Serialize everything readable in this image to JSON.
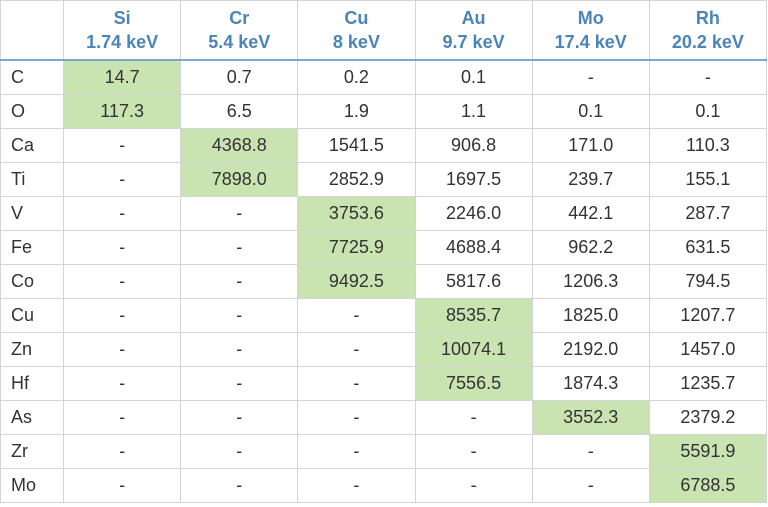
{
  "table": {
    "corner": "",
    "columns": [
      {
        "element": "Si",
        "energy": "1.74 keV"
      },
      {
        "element": "Cr",
        "energy": "5.4 keV"
      },
      {
        "element": "Cu",
        "energy": "8 keV"
      },
      {
        "element": "Au",
        "energy": "9.7 keV"
      },
      {
        "element": "Mo",
        "energy": "17.4 keV"
      },
      {
        "element": "Rh",
        "energy": "20.2 keV"
      }
    ],
    "rows": [
      {
        "label": "C",
        "values": [
          "14.7",
          "0.7",
          "0.2",
          "0.1",
          "-",
          "-"
        ],
        "highlight": 0
      },
      {
        "label": "O",
        "values": [
          "117.3",
          "6.5",
          "1.9",
          "1.1",
          "0.1",
          "0.1"
        ],
        "highlight": 0
      },
      {
        "label": "Ca",
        "values": [
          "-",
          "4368.8",
          "1541.5",
          "906.8",
          "171.0",
          "110.3"
        ],
        "highlight": 1
      },
      {
        "label": "Ti",
        "values": [
          "-",
          "7898.0",
          "2852.9",
          "1697.5",
          "239.7",
          "155.1"
        ],
        "highlight": 1
      },
      {
        "label": "V",
        "values": [
          "-",
          "-",
          "3753.6",
          "2246.0",
          "442.1",
          "287.7"
        ],
        "highlight": 2
      },
      {
        "label": "Fe",
        "values": [
          "-",
          "-",
          "7725.9",
          "4688.4",
          "962.2",
          "631.5"
        ],
        "highlight": 2
      },
      {
        "label": "Co",
        "values": [
          "-",
          "-",
          "9492.5",
          "5817.6",
          "1206.3",
          "794.5"
        ],
        "highlight": 2
      },
      {
        "label": "Cu",
        "values": [
          "-",
          "-",
          "-",
          "8535.7",
          "1825.0",
          "1207.7"
        ],
        "highlight": 3
      },
      {
        "label": "Zn",
        "values": [
          "-",
          "-",
          "-",
          "10074.1",
          "2192.0",
          "1457.0"
        ],
        "highlight": 3
      },
      {
        "label": "Hf",
        "values": [
          "-",
          "-",
          "-",
          "7556.5",
          "1874.3",
          "1235.7"
        ],
        "highlight": 3
      },
      {
        "label": "As",
        "values": [
          "-",
          "-",
          "-",
          "-",
          "3552.3",
          "2379.2"
        ],
        "highlight": 4
      },
      {
        "label": "Zr",
        "values": [
          "-",
          "-",
          "-",
          "-",
          "-",
          "5591.9"
        ],
        "highlight": 5
      },
      {
        "label": "Mo",
        "values": [
          "-",
          "-",
          "-",
          "-",
          "-",
          "6788.5"
        ],
        "highlight": 5
      }
    ],
    "colors": {
      "header_text": "#4a84b8",
      "highlight_fill": "#c9e3b1",
      "grid_line": "#d4d4d4",
      "body_text": "#333333"
    }
  }
}
